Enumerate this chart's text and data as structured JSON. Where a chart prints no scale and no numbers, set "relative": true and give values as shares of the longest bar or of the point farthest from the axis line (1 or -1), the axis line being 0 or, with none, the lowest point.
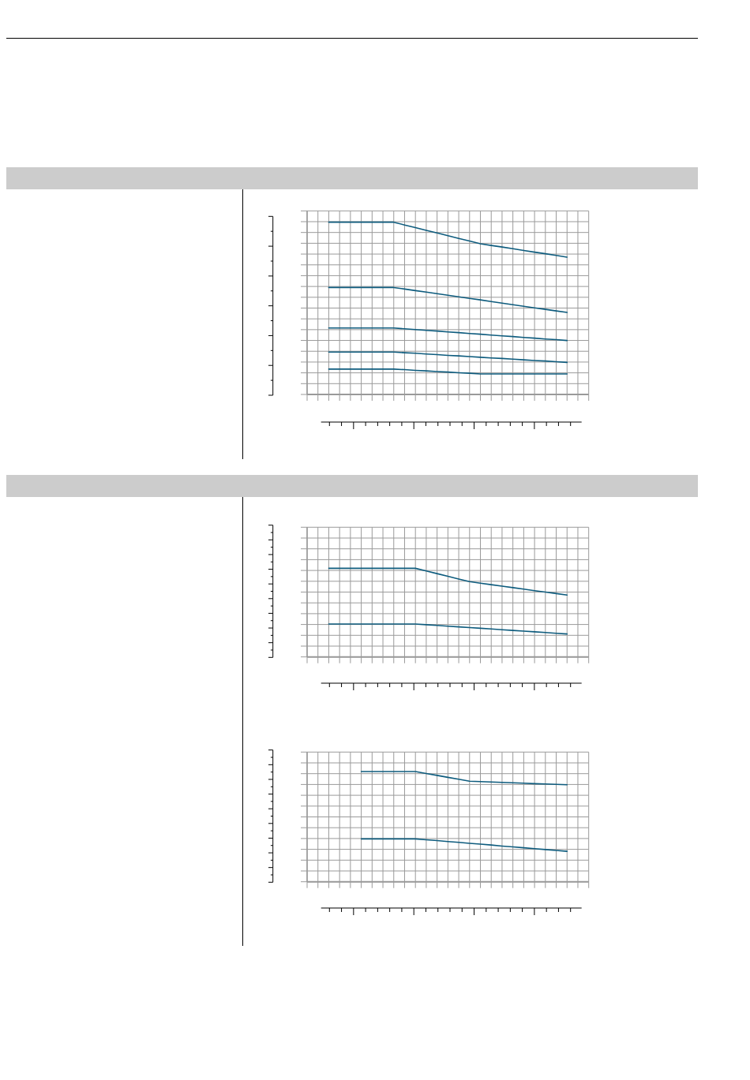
{
  "chart_data": [
    {
      "type": "line",
      "relative": true,
      "grid": true,
      "categories": [
        null,
        null,
        null,
        null,
        null,
        null,
        null,
        null,
        null,
        null,
        null,
        null,
        null,
        null,
        null,
        null,
        null,
        null,
        null,
        null,
        null,
        null,
        null,
        null,
        null,
        null,
        null
      ],
      "series": [
        {
          "color": "#0e5c7e",
          "values": [
            null,
            null,
            1,
            1,
            1,
            1,
            1,
            1,
            1,
            0.984,
            0.969,
            0.953,
            0.938,
            0.922,
            0.906,
            0.891,
            0.875,
            0.865,
            0.856,
            0.846,
            0.836,
            0.826,
            0.817,
            0.807,
            0.797,
            null,
            null
          ]
        },
        {
          "color": "#0e5c7e",
          "values": [
            null,
            null,
            0.621,
            0.621,
            0.621,
            0.621,
            0.621,
            0.621,
            0.621,
            0.612,
            0.603,
            0.594,
            0.585,
            0.576,
            0.567,
            0.558,
            0.549,
            0.539,
            0.53,
            0.521,
            0.512,
            0.503,
            0.494,
            0.485,
            0.476,
            null,
            null
          ]
        },
        {
          "color": "#0e5c7e",
          "values": [
            null,
            null,
            0.386,
            0.386,
            0.386,
            0.386,
            0.386,
            0.386,
            0.386,
            0.381,
            0.377,
            0.372,
            0.368,
            0.363,
            0.359,
            0.354,
            0.35,
            0.345,
            0.34,
            0.336,
            0.331,
            0.327,
            0.322,
            0.318,
            0.313,
            null,
            null
          ]
        },
        {
          "color": "#0e5c7e",
          "values": [
            null,
            null,
            0.246,
            0.246,
            0.246,
            0.246,
            0.246,
            0.246,
            0.246,
            0.242,
            0.239,
            0.235,
            0.231,
            0.227,
            0.224,
            0.22,
            0.216,
            0.212,
            0.209,
            0.205,
            0.201,
            0.197,
            0.194,
            0.19,
            0.186,
            null,
            null
          ]
        },
        {
          "color": "#0e5c7e",
          "values": [
            null,
            null,
            0.147,
            0.147,
            0.147,
            0.147,
            0.147,
            0.147,
            0.147,
            0.144,
            0.14,
            0.137,
            0.133,
            0.13,
            0.126,
            0.123,
            0.119,
            0.119,
            0.119,
            0.119,
            0.119,
            0.119,
            0.119,
            0.119,
            0.119,
            null,
            null
          ]
        }
      ]
    },
    {
      "type": "line",
      "relative": true,
      "grid": true,
      "categories": [
        null,
        null,
        null,
        null,
        null,
        null,
        null,
        null,
        null,
        null,
        null,
        null,
        null,
        null,
        null,
        null,
        null,
        null,
        null,
        null,
        null,
        null,
        null,
        null,
        null,
        null,
        null
      ],
      "series": [
        {
          "color": "#0e5c7e",
          "values": [
            null,
            null,
            1,
            1,
            1,
            1,
            1,
            1,
            1,
            1,
            1,
            0.97,
            0.94,
            0.909,
            0.879,
            0.849,
            0.832,
            0.815,
            0.799,
            0.782,
            0.765,
            0.748,
            0.732,
            0.715,
            0.698,
            null,
            null
          ]
        },
        {
          "color": "#0e5c7e",
          "values": [
            null,
            null,
            0.371,
            0.371,
            0.371,
            0.371,
            0.371,
            0.371,
            0.371,
            0.371,
            0.371,
            0.363,
            0.355,
            0.347,
            0.339,
            0.331,
            0.323,
            0.315,
            0.307,
            0.299,
            0.291,
            0.283,
            0.275,
            0.267,
            0.259,
            null,
            null
          ]
        }
      ]
    },
    {
      "type": "line",
      "relative": true,
      "grid": true,
      "categories": [
        null,
        null,
        null,
        null,
        null,
        null,
        null,
        null,
        null,
        null,
        null,
        null,
        null,
        null,
        null,
        null,
        null,
        null,
        null,
        null,
        null,
        null,
        null,
        null,
        null,
        null,
        null
      ],
      "series": [
        {
          "color": "#0e5c7e",
          "values": [
            null,
            null,
            null,
            null,
            null,
            1,
            1,
            1,
            1,
            1,
            1,
            0.982,
            0.965,
            0.947,
            0.93,
            0.912,
            0.908,
            0.905,
            0.901,
            0.898,
            0.894,
            0.89,
            0.887,
            0.883,
            0.88,
            null,
            null
          ]
        },
        {
          "color": "#0e5c7e",
          "values": [
            null,
            null,
            null,
            null,
            null,
            0.389,
            0.389,
            0.389,
            0.389,
            0.389,
            0.389,
            0.381,
            0.373,
            0.365,
            0.357,
            0.349,
            0.341,
            0.333,
            0.324,
            0.316,
            0.308,
            0.3,
            0.292,
            0.284,
            0.276,
            null,
            null
          ]
        }
      ]
    }
  ]
}
